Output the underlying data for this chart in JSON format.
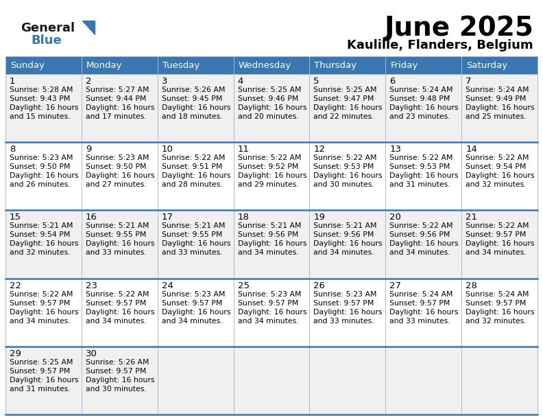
{
  "title": "June 2025",
  "subtitle": "Kaulille, Flanders, Belgium",
  "header_color": "#3a76b0",
  "header_text_color": "#ffffff",
  "days_of_week": [
    "Sunday",
    "Monday",
    "Tuesday",
    "Wednesday",
    "Thursday",
    "Friday",
    "Saturday"
  ],
  "row_colors": [
    "#f0f0f0",
    "#ffffff",
    "#f0f0f0",
    "#ffffff",
    "#f0f0f0"
  ],
  "cell_data": [
    {
      "day": 1,
      "sunrise": "5:28 AM",
      "sunset": "9:43 PM",
      "dl1": "16 hours",
      "dl2": "and 15 minutes."
    },
    {
      "day": 2,
      "sunrise": "5:27 AM",
      "sunset": "9:44 PM",
      "dl1": "16 hours",
      "dl2": "and 17 minutes."
    },
    {
      "day": 3,
      "sunrise": "5:26 AM",
      "sunset": "9:45 PM",
      "dl1": "16 hours",
      "dl2": "and 18 minutes."
    },
    {
      "day": 4,
      "sunrise": "5:25 AM",
      "sunset": "9:46 PM",
      "dl1": "16 hours",
      "dl2": "and 20 minutes."
    },
    {
      "day": 5,
      "sunrise": "5:25 AM",
      "sunset": "9:47 PM",
      "dl1": "16 hours",
      "dl2": "and 22 minutes."
    },
    {
      "day": 6,
      "sunrise": "5:24 AM",
      "sunset": "9:48 PM",
      "dl1": "16 hours",
      "dl2": "and 23 minutes."
    },
    {
      "day": 7,
      "sunrise": "5:24 AM",
      "sunset": "9:49 PM",
      "dl1": "16 hours",
      "dl2": "and 25 minutes."
    },
    {
      "day": 8,
      "sunrise": "5:23 AM",
      "sunset": "9:50 PM",
      "dl1": "16 hours",
      "dl2": "and 26 minutes."
    },
    {
      "day": 9,
      "sunrise": "5:23 AM",
      "sunset": "9:50 PM",
      "dl1": "16 hours",
      "dl2": "and 27 minutes."
    },
    {
      "day": 10,
      "sunrise": "5:22 AM",
      "sunset": "9:51 PM",
      "dl1": "16 hours",
      "dl2": "and 28 minutes."
    },
    {
      "day": 11,
      "sunrise": "5:22 AM",
      "sunset": "9:52 PM",
      "dl1": "16 hours",
      "dl2": "and 29 minutes."
    },
    {
      "day": 12,
      "sunrise": "5:22 AM",
      "sunset": "9:53 PM",
      "dl1": "16 hours",
      "dl2": "and 30 minutes."
    },
    {
      "day": 13,
      "sunrise": "5:22 AM",
      "sunset": "9:53 PM",
      "dl1": "16 hours",
      "dl2": "and 31 minutes."
    },
    {
      "day": 14,
      "sunrise": "5:22 AM",
      "sunset": "9:54 PM",
      "dl1": "16 hours",
      "dl2": "and 32 minutes."
    },
    {
      "day": 15,
      "sunrise": "5:21 AM",
      "sunset": "9:54 PM",
      "dl1": "16 hours",
      "dl2": "and 32 minutes."
    },
    {
      "day": 16,
      "sunrise": "5:21 AM",
      "sunset": "9:55 PM",
      "dl1": "16 hours",
      "dl2": "and 33 minutes."
    },
    {
      "day": 17,
      "sunrise": "5:21 AM",
      "sunset": "9:55 PM",
      "dl1": "16 hours",
      "dl2": "and 33 minutes."
    },
    {
      "day": 18,
      "sunrise": "5:21 AM",
      "sunset": "9:56 PM",
      "dl1": "16 hours",
      "dl2": "and 34 minutes."
    },
    {
      "day": 19,
      "sunrise": "5:21 AM",
      "sunset": "9:56 PM",
      "dl1": "16 hours",
      "dl2": "and 34 minutes."
    },
    {
      "day": 20,
      "sunrise": "5:22 AM",
      "sunset": "9:56 PM",
      "dl1": "16 hours",
      "dl2": "and 34 minutes."
    },
    {
      "day": 21,
      "sunrise": "5:22 AM",
      "sunset": "9:57 PM",
      "dl1": "16 hours",
      "dl2": "and 34 minutes."
    },
    {
      "day": 22,
      "sunrise": "5:22 AM",
      "sunset": "9:57 PM",
      "dl1": "16 hours",
      "dl2": "and 34 minutes."
    },
    {
      "day": 23,
      "sunrise": "5:22 AM",
      "sunset": "9:57 PM",
      "dl1": "16 hours",
      "dl2": "and 34 minutes."
    },
    {
      "day": 24,
      "sunrise": "5:23 AM",
      "sunset": "9:57 PM",
      "dl1": "16 hours",
      "dl2": "and 34 minutes."
    },
    {
      "day": 25,
      "sunrise": "5:23 AM",
      "sunset": "9:57 PM",
      "dl1": "16 hours",
      "dl2": "and 34 minutes."
    },
    {
      "day": 26,
      "sunrise": "5:23 AM",
      "sunset": "9:57 PM",
      "dl1": "16 hours",
      "dl2": "and 33 minutes."
    },
    {
      "day": 27,
      "sunrise": "5:24 AM",
      "sunset": "9:57 PM",
      "dl1": "16 hours",
      "dl2": "and 33 minutes."
    },
    {
      "day": 28,
      "sunrise": "5:24 AM",
      "sunset": "9:57 PM",
      "dl1": "16 hours",
      "dl2": "and 32 minutes."
    },
    {
      "day": 29,
      "sunrise": "5:25 AM",
      "sunset": "9:57 PM",
      "dl1": "16 hours",
      "dl2": "and 31 minutes."
    },
    {
      "day": 30,
      "sunrise": "5:26 AM",
      "sunset": "9:57 PM",
      "dl1": "16 hours",
      "dl2": "and 30 minutes."
    }
  ],
  "weeks": [
    [
      1,
      2,
      3,
      4,
      5,
      6,
      7
    ],
    [
      8,
      9,
      10,
      11,
      12,
      13,
      14
    ],
    [
      15,
      16,
      17,
      18,
      19,
      20,
      21
    ],
    [
      22,
      23,
      24,
      25,
      26,
      27,
      28
    ],
    [
      29,
      30,
      null,
      null,
      null,
      null,
      null
    ]
  ],
  "bg_color": "#ffffff",
  "grid_color": "#b0b8c8",
  "title_fontsize": 28,
  "subtitle_fontsize": 13,
  "header_fontsize": 9.5,
  "day_num_fontsize": 9.5,
  "cell_text_fontsize": 7.8
}
